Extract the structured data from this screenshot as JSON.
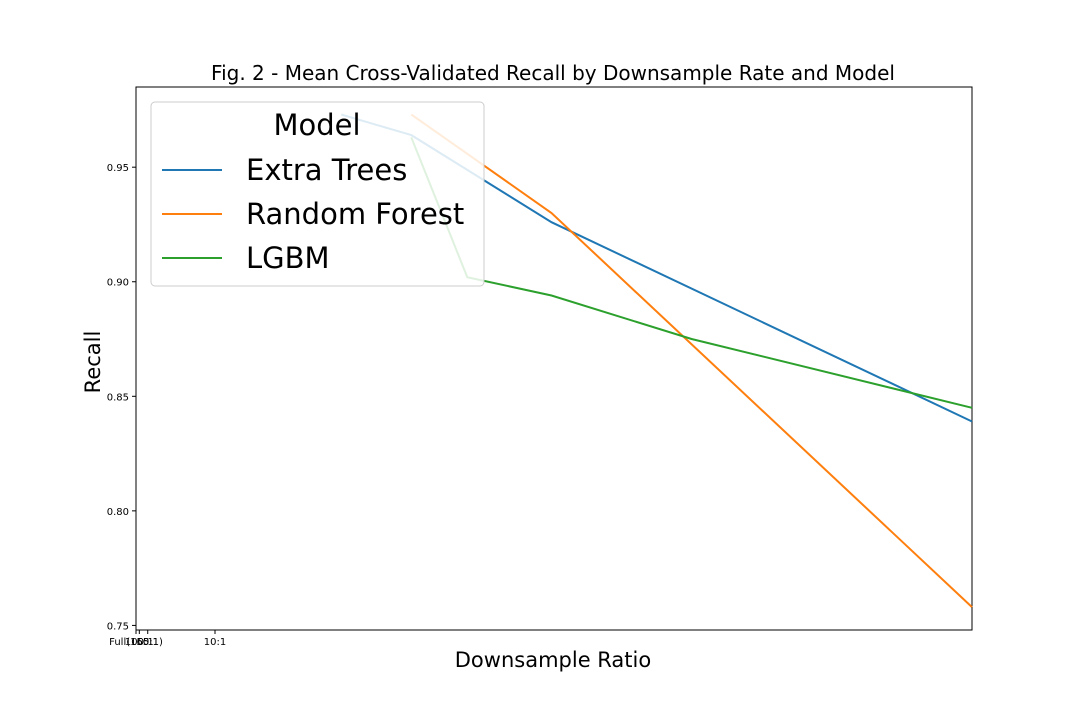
{
  "chart_data": {
    "type": "line",
    "title": "Fig. 2 - Mean Cross-Validated Recall by Downsample Rate and Model",
    "xlabel": "Downsample Ratio",
    "ylabel": "Recall",
    "x_scale": "reciprocal",
    "x_ticks": [
      {
        "label": "Full(165:1)",
        "value": 165
      },
      {
        "label": "100:1",
        "value": 100
      },
      {
        "label": "50:1",
        "value": 50
      },
      {
        "label": "10:1",
        "value": 10
      }
    ],
    "xlim": [
      165,
      1
    ],
    "y_ticks": [
      0.75,
      0.8,
      0.85,
      0.9,
      0.95
    ],
    "y_tick_labels": [
      "0.75",
      "0.80",
      "0.85",
      "0.90",
      "0.95"
    ],
    "ylim": [
      0.748,
      0.985
    ],
    "grid": false,
    "legend": {
      "title": "Model",
      "position": "top-left"
    },
    "series": [
      {
        "name": "Extra Trees",
        "color": "#1f77b4",
        "x": [
          4,
          3,
          2,
          1
        ],
        "y": [
          0.973,
          0.964,
          0.926,
          0.839
        ]
      },
      {
        "name": "Random Forest",
        "color": "#ff7f0e",
        "x": [
          3,
          2,
          1
        ],
        "y": [
          0.973,
          0.93,
          0.758
        ]
      },
      {
        "name": "LGBM",
        "color": "#2ca02c",
        "x": [
          3,
          2.5,
          2,
          1.5,
          1
        ],
        "y": [
          0.963,
          0.902,
          0.894,
          0.875,
          0.845
        ]
      }
    ]
  }
}
